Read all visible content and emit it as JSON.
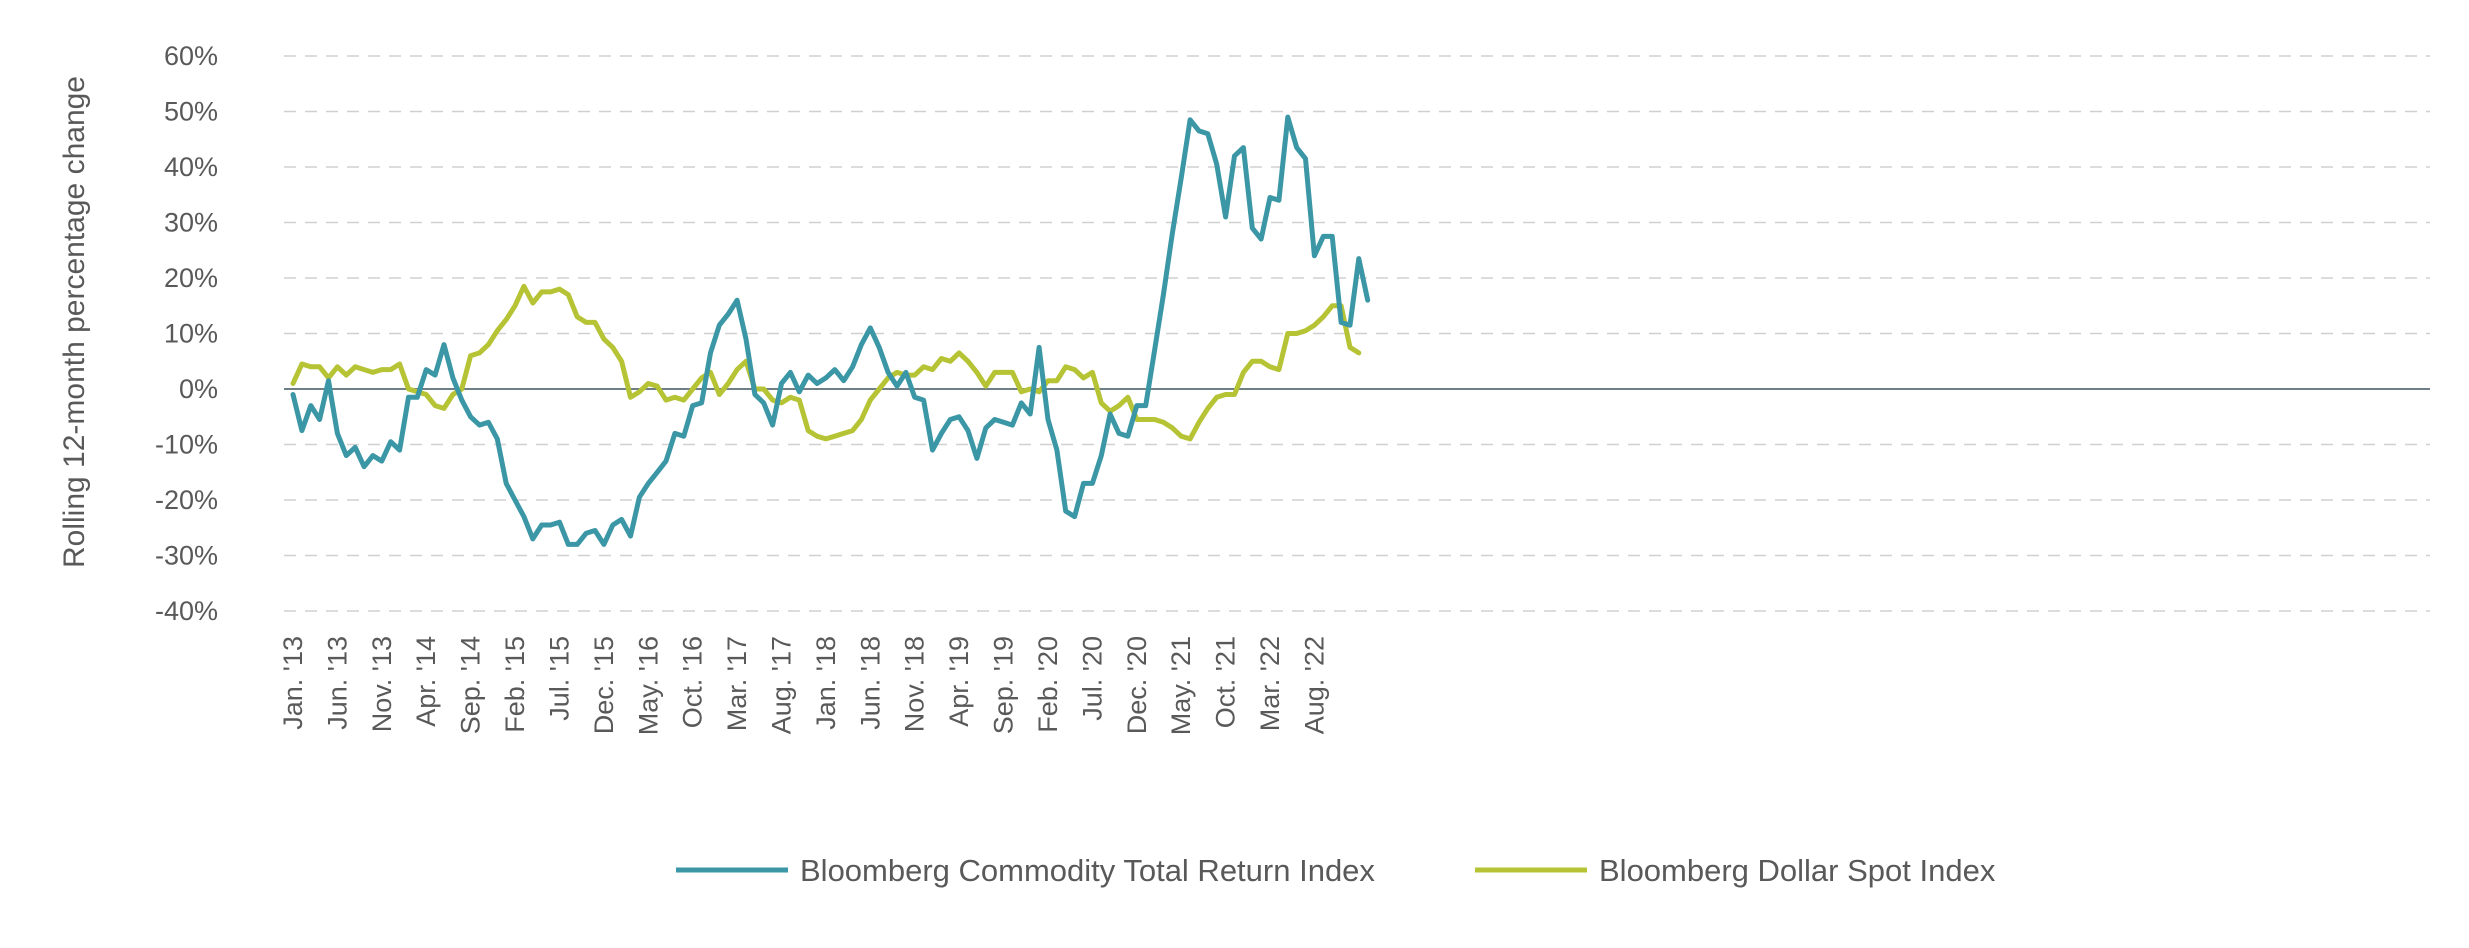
{
  "chart_data": {
    "type": "line",
    "title": "",
    "ylabel": "Rolling 12-month percentage change",
    "xlabel": "",
    "ylim": [
      -40,
      60
    ],
    "yticks": [
      60,
      50,
      40,
      30,
      20,
      10,
      0,
      -10,
      -20,
      -30,
      -40
    ],
    "ytick_labels": [
      "60%",
      "50%",
      "40%",
      "30%",
      "20%",
      "10%",
      "0%",
      "-10%",
      "-20%",
      "-30%",
      "-40%"
    ],
    "grid": true,
    "legend_position": "bottom",
    "x_start": "2013-01",
    "x_tick_labels": [
      "Jan. '13",
      "Jun. '13",
      "Nov. '13",
      "Apr. '14",
      "Sep. '14",
      "Feb. '15",
      "Jul. '15",
      "Dec. '15",
      "May. '16",
      "Oct. '16",
      "Mar. '17",
      "Aug. '17",
      "Jan. '18",
      "Jun. '18",
      "Nov. '18",
      "Apr. '19",
      "Sep. '19",
      "Feb. '20",
      "Jul. '20",
      "Dec. '20",
      "May. '21",
      "Oct. '21",
      "Mar. '22",
      "Aug. '22"
    ],
    "series": [
      {
        "name": "Bloomberg Commodity Total Return Index",
        "color": "#3b97a5",
        "values": [
          -1,
          -7.5,
          -3,
          -5.5,
          1.5,
          -8,
          -12,
          -10.5,
          -14,
          -12,
          -13,
          -9.5,
          -11,
          -1.5,
          -1.5,
          3.5,
          2.5,
          8,
          2,
          -2,
          -5,
          -6.5,
          -6,
          -9,
          -17,
          -20,
          -23,
          -27,
          -24.5,
          -24.5,
          -24,
          -28,
          -28,
          -26,
          -25.5,
          -28,
          -24.5,
          -23.5,
          -26.5,
          -19.5,
          -17,
          -15,
          -13,
          -8,
          -8.5,
          -3,
          -2.5,
          6.5,
          11.5,
          13.5,
          16,
          9,
          -1,
          -2.5,
          -6.5,
          1,
          3,
          -0.5,
          2.5,
          1,
          2,
          3.5,
          1.5,
          4,
          8,
          11,
          7.5,
          3,
          0.5,
          3,
          -1.5,
          -2,
          -11,
          -8,
          -5.5,
          -5,
          -7.5,
          -12.5,
          -7,
          -5.5,
          -6,
          -6.5,
          -2.5,
          -4.5,
          7.5,
          -5.5,
          -11,
          -22,
          -23,
          -17,
          -17,
          -12,
          -4.5,
          -8,
          -8.5,
          -3,
          -3,
          7,
          17,
          28,
          38,
          48.5,
          46.5,
          46,
          40.5,
          31,
          42,
          43.5,
          29,
          27,
          34.5,
          34,
          49,
          43.5,
          41.5,
          24,
          27.5,
          27.5,
          12,
          11.5,
          23.5,
          16
        ]
      },
      {
        "name": "Bloomberg Dollar Spot Index",
        "color": "#b5c334",
        "values": [
          1,
          4.5,
          4,
          4,
          2,
          4,
          2.5,
          4,
          3.5,
          3,
          3.5,
          3.5,
          4.5,
          0,
          -0.5,
          -1,
          -3,
          -3.5,
          -1,
          0,
          6,
          6.5,
          8,
          10.5,
          12.5,
          15,
          18.5,
          15.5,
          17.5,
          17.5,
          18,
          17,
          13,
          12,
          12,
          9,
          7.5,
          5,
          -1.5,
          -0.5,
          1,
          0.5,
          -2,
          -1.5,
          -2,
          0,
          2,
          3,
          -1,
          1,
          3.5,
          5,
          0,
          0,
          -2,
          -2.5,
          -1.5,
          -2,
          -7.5,
          -8.5,
          -9,
          -8.5,
          -8,
          -7.5,
          -5.5,
          -2,
          0,
          2,
          3,
          2.5,
          2.5,
          4,
          3.5,
          5.5,
          5,
          6.5,
          5,
          3,
          0.5,
          3,
          3,
          3,
          -0.5,
          0,
          -0.5,
          1.5,
          1.5,
          4,
          3.5,
          2,
          3,
          -2.5,
          -4,
          -3,
          -1.5,
          -5.5,
          -5.5,
          -5.5,
          -6,
          -7,
          -8.5,
          -9,
          -6,
          -3.5,
          -1.5,
          -1,
          -1,
          3,
          5,
          5,
          4,
          3.5,
          10,
          10,
          10.5,
          11.5,
          13,
          15,
          15,
          7.5,
          6.5
        ]
      }
    ]
  }
}
